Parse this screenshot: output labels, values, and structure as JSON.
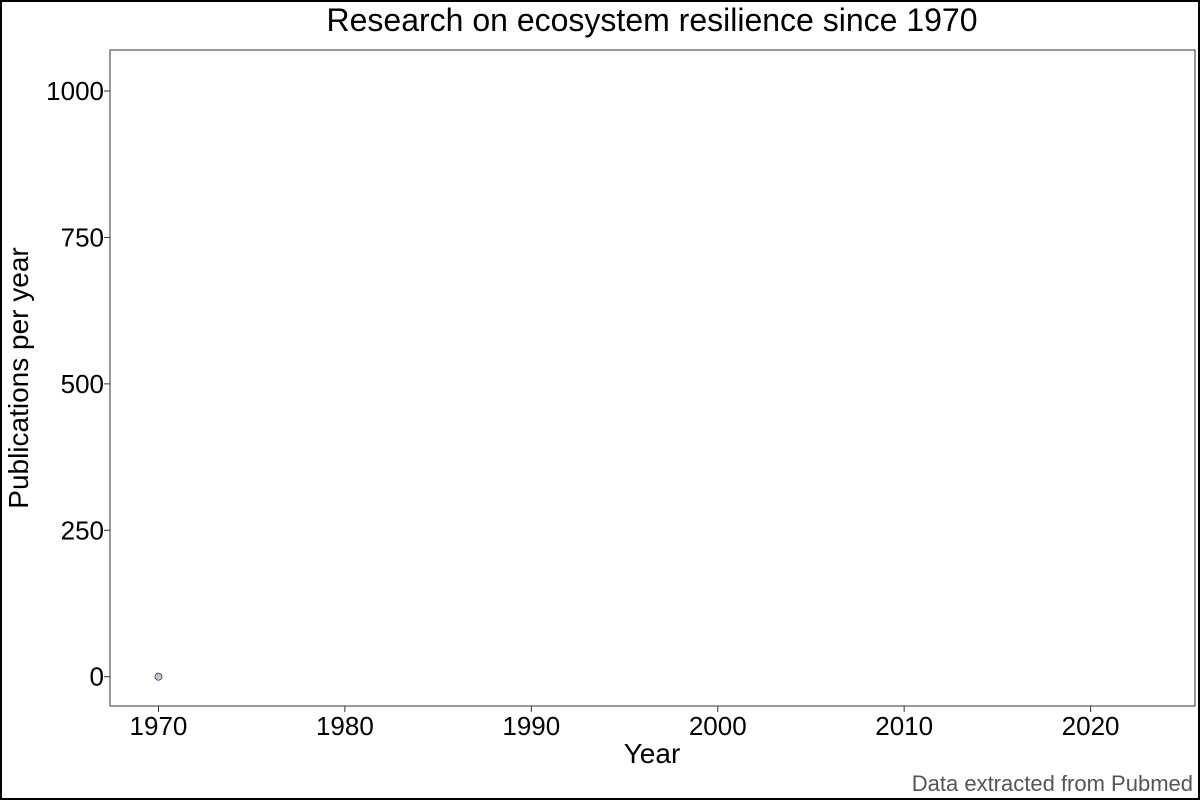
{
  "chart_data": {
    "type": "scatter",
    "title": "Research on ecosystem resilience since 1970",
    "xlabel": "Year",
    "ylabel": "Publications per year",
    "caption": "Data extracted from Pubmed",
    "x_ticks": [
      1970,
      1980,
      1990,
      2000,
      2010,
      2020
    ],
    "y_ticks": [
      0,
      250,
      500,
      750,
      1000
    ],
    "xlim": [
      1967.4,
      2025.6
    ],
    "ylim": [
      -50,
      1070
    ],
    "grid": false,
    "series": [
      {
        "x": [
          1970
        ],
        "y": [
          0
        ],
        "color": "#c8c4dc",
        "stroke": "#555555"
      }
    ]
  }
}
